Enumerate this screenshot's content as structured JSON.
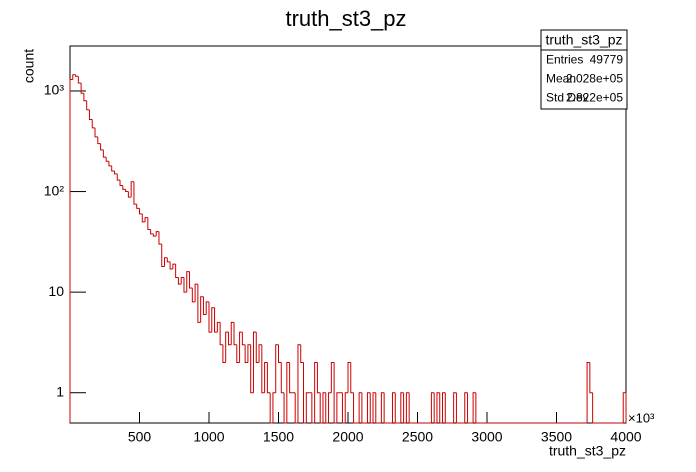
{
  "chart_data": {
    "type": "histogram",
    "title": "truth_st3_pz",
    "xlabel": "truth_st3_pz",
    "ylabel": "count",
    "x_multiplier": "×10³",
    "color": "#cc0000",
    "log_y": true,
    "xlim": [
      0,
      4000
    ],
    "xticks": [
      500,
      1000,
      1500,
      2000,
      2500,
      3000,
      3500,
      4000
    ],
    "ylim": [
      0.5,
      2800
    ],
    "yticks": [
      1,
      10,
      {
        "value": 100,
        "label": "10²"
      },
      {
        "value": 1000,
        "label": "10³"
      }
    ],
    "bins": [
      0,
      20,
      40,
      60,
      80,
      100,
      120,
      140,
      160,
      180,
      200,
      220,
      240,
      260,
      280,
      300,
      320,
      340,
      360,
      380,
      400,
      420,
      440,
      460,
      480,
      500,
      520,
      540,
      560,
      580,
      600,
      620,
      640,
      660,
      680,
      700,
      720,
      740,
      760,
      780,
      800,
      820,
      840,
      860,
      880,
      900,
      920,
      940,
      960,
      980,
      1000,
      1020,
      1040,
      1060,
      1080,
      1100,
      1120,
      1140,
      1160,
      1180,
      1200,
      1220,
      1240,
      1260,
      1280,
      1300,
      1320,
      1340,
      1360,
      1380,
      1400,
      1420,
      1440,
      1460,
      1480,
      1500,
      1520,
      1540,
      1560,
      1580,
      1600,
      1620,
      1640,
      1660,
      1680,
      1700,
      1720,
      1740,
      1760,
      1780,
      1800,
      1820,
      1840,
      1860,
      1880,
      1900,
      1920,
      1940,
      1960,
      1980,
      2000,
      2020,
      2040,
      2060,
      2080,
      2100,
      2120,
      2140,
      2160,
      2180,
      2200,
      2220,
      2240,
      2260,
      2280,
      2300,
      2320,
      2340,
      2360,
      2380,
      2400,
      2420,
      2440,
      2460,
      2480,
      2500,
      2520,
      2540,
      2560,
      2580,
      2600,
      2620,
      2640,
      2660,
      2680,
      2700,
      2720,
      2740,
      2760,
      2780,
      2800,
      2820,
      2840,
      2860,
      2880,
      2900,
      2920,
      2940,
      2960,
      2980,
      3000,
      3020,
      3040,
      3060,
      3080,
      3100,
      3120,
      3140,
      3160,
      3180,
      3200,
      3220,
      3240,
      3260,
      3280,
      3300,
      3320,
      3340,
      3360,
      3380,
      3400,
      3420,
      3440,
      3460,
      3480,
      3500,
      3520,
      3540,
      3560,
      3580,
      3600,
      3620,
      3640,
      3660,
      3680,
      3700,
      3720,
      3740,
      3760,
      3780,
      3800,
      3820,
      3840,
      3860,
      3880,
      3900,
      3920,
      3940,
      3960,
      3980,
      4000
    ],
    "values": [
      1300,
      1450,
      1400,
      1200,
      950,
      800,
      650,
      520,
      430,
      350,
      300,
      260,
      220,
      200,
      180,
      160,
      150,
      130,
      115,
      105,
      100,
      88,
      125,
      75,
      68,
      60,
      50,
      55,
      42,
      38,
      36,
      40,
      30,
      18,
      22,
      20,
      17,
      19,
      14,
      12,
      14,
      10,
      16,
      11,
      8,
      12,
      5,
      9,
      6,
      8,
      4,
      7,
      4,
      5,
      3,
      2,
      4,
      3,
      5,
      3,
      2,
      4,
      3,
      2,
      3,
      1,
      4,
      2,
      3,
      1,
      2,
      1,
      0,
      1,
      3,
      2,
      1,
      0,
      2,
      1,
      1,
      0,
      3,
      2,
      0,
      1,
      1,
      0,
      2,
      1,
      0,
      1,
      0,
      1,
      2,
      0,
      1,
      1,
      0,
      1,
      2,
      1,
      0,
      0,
      1,
      0,
      0,
      1,
      0,
      1,
      0,
      0,
      1,
      0,
      0,
      0,
      1,
      0,
      0,
      1,
      0,
      1,
      0,
      0,
      0,
      0,
      0,
      0,
      0,
      0,
      1,
      0,
      1,
      0,
      1,
      0,
      0,
      0,
      1,
      0,
      0,
      0,
      1,
      0,
      0,
      1,
      0,
      0,
      0,
      0,
      0,
      0,
      0,
      0,
      0,
      0,
      0,
      0,
      0,
      0,
      0,
      0,
      0,
      0,
      0,
      0,
      0,
      0,
      0,
      0,
      0,
      0,
      0,
      0,
      0,
      0,
      0,
      0,
      0,
      0,
      0,
      0,
      0,
      0,
      0,
      0,
      2,
      1,
      0,
      0,
      0,
      0,
      0,
      0,
      0,
      0,
      0,
      0,
      0,
      1
    ],
    "stats": {
      "title": "truth_st3_pz",
      "rows": [
        [
          "Entries",
          "49779"
        ],
        [
          "Mean",
          "2.028e+05"
        ],
        [
          "Std Dev",
          "2.822e+05"
        ]
      ]
    }
  }
}
